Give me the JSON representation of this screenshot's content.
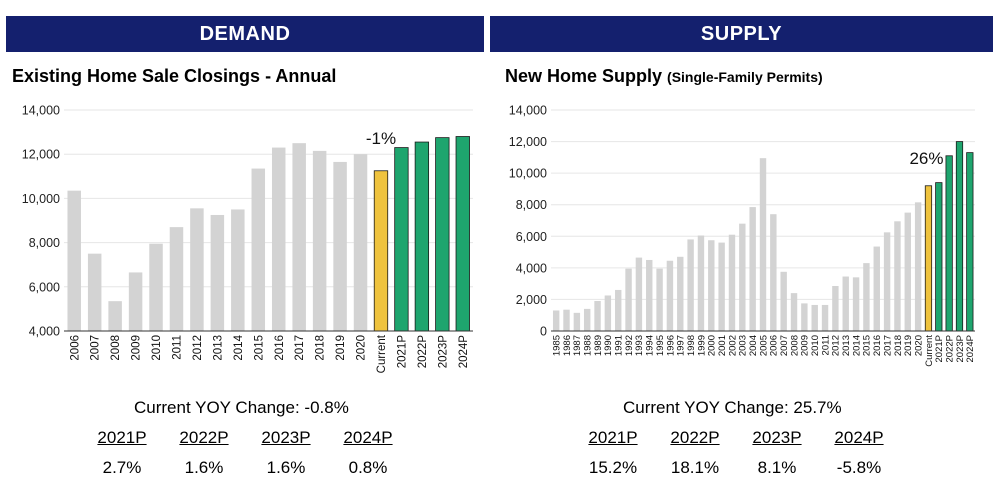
{
  "demand": {
    "header": "DEMAND",
    "chart_data": {
      "type": "bar",
      "title": "Existing Home Sale Closings - Annual",
      "categories": [
        "2006",
        "2007",
        "2008",
        "2009",
        "2010",
        "2011",
        "2012",
        "2013",
        "2014",
        "2015",
        "2016",
        "2017",
        "2018",
        "2019",
        "2020",
        "Current",
        "2021P",
        "2022P",
        "2023P",
        "2024P"
      ],
      "values": [
        10350,
        7500,
        5350,
        6650,
        7950,
        8700,
        9550,
        9250,
        9500,
        11350,
        12300,
        12500,
        12150,
        11650,
        12000,
        11250,
        12300,
        12550,
        12750,
        12800
      ],
      "bar_types": [
        "hist",
        "hist",
        "hist",
        "hist",
        "hist",
        "hist",
        "hist",
        "hist",
        "hist",
        "hist",
        "hist",
        "hist",
        "hist",
        "hist",
        "hist",
        "current",
        "proj",
        "proj",
        "proj",
        "proj"
      ],
      "yticks": [
        4000,
        6000,
        8000,
        10000,
        12000,
        14000
      ],
      "ytick_labels": [
        "4,000",
        "6,000",
        "8,000",
        "10,000",
        "12,000",
        "14,000"
      ],
      "ylim": [
        4000,
        14000
      ],
      "annotation": {
        "text": "-1%",
        "category": "Current"
      },
      "colors": {
        "hist": "#d3d3d3",
        "current": "#efc33e",
        "proj": "#1ea56e",
        "grid": "#e6e6e6",
        "axis": "#333333"
      }
    },
    "current_yoy": "Current YOY Change: -0.8%",
    "projections": [
      {
        "year": "2021P",
        "value": "2.7%"
      },
      {
        "year": "2022P",
        "value": "1.6%"
      },
      {
        "year": "2023P",
        "value": "1.6%"
      },
      {
        "year": "2024P",
        "value": "0.8%"
      }
    ]
  },
  "supply": {
    "header": "SUPPLY",
    "chart_data": {
      "type": "bar",
      "title": "New Home Supply",
      "subtitle": "(Single-Family Permits)",
      "categories": [
        "1985",
        "1986",
        "1987",
        "1988",
        "1989",
        "1990",
        "1991",
        "1992",
        "1993",
        "1994",
        "1995",
        "1996",
        "1997",
        "1998",
        "1999",
        "2000",
        "2001",
        "2002",
        "2003",
        "2004",
        "2005",
        "2006",
        "2007",
        "2008",
        "2009",
        "2010",
        "2011",
        "2012",
        "2013",
        "2014",
        "2015",
        "2016",
        "2017",
        "2018",
        "2019",
        "2020",
        "Current",
        "2021P",
        "2022P",
        "2023P",
        "2024P"
      ],
      "values": [
        1300,
        1350,
        1150,
        1400,
        1900,
        2250,
        2600,
        3950,
        4650,
        4500,
        3950,
        4450,
        4700,
        5800,
        6050,
        5750,
        5600,
        6100,
        6800,
        7850,
        10950,
        7400,
        3750,
        2400,
        1750,
        1650,
        1650,
        2850,
        3450,
        3400,
        4300,
        5350,
        6250,
        6950,
        7500,
        8150,
        9200,
        9400,
        11100,
        12000,
        11300
      ],
      "bar_types": [
        "hist",
        "hist",
        "hist",
        "hist",
        "hist",
        "hist",
        "hist",
        "hist",
        "hist",
        "hist",
        "hist",
        "hist",
        "hist",
        "hist",
        "hist",
        "hist",
        "hist",
        "hist",
        "hist",
        "hist",
        "hist",
        "hist",
        "hist",
        "hist",
        "hist",
        "hist",
        "hist",
        "hist",
        "hist",
        "hist",
        "hist",
        "hist",
        "hist",
        "hist",
        "hist",
        "hist",
        "current",
        "proj",
        "proj",
        "proj",
        "proj"
      ],
      "yticks": [
        0,
        2000,
        4000,
        6000,
        8000,
        10000,
        12000,
        14000
      ],
      "ytick_labels": [
        "0",
        "2,000",
        "4,000",
        "6,000",
        "8,000",
        "10,000",
        "12,000",
        "14,000"
      ],
      "ylim": [
        0,
        14000
      ],
      "annotation": {
        "text": "26%",
        "category": "Current"
      },
      "colors": {
        "hist": "#d3d3d3",
        "current": "#efc33e",
        "proj": "#1ea56e",
        "grid": "#e6e6e6",
        "axis": "#333333"
      }
    },
    "current_yoy": "Current YOY Change: 25.7%",
    "projections": [
      {
        "year": "2021P",
        "value": "15.2%"
      },
      {
        "year": "2022P",
        "value": "18.1%"
      },
      {
        "year": "2023P",
        "value": "8.1%"
      },
      {
        "year": "2024P",
        "value": "-5.8%"
      }
    ]
  }
}
